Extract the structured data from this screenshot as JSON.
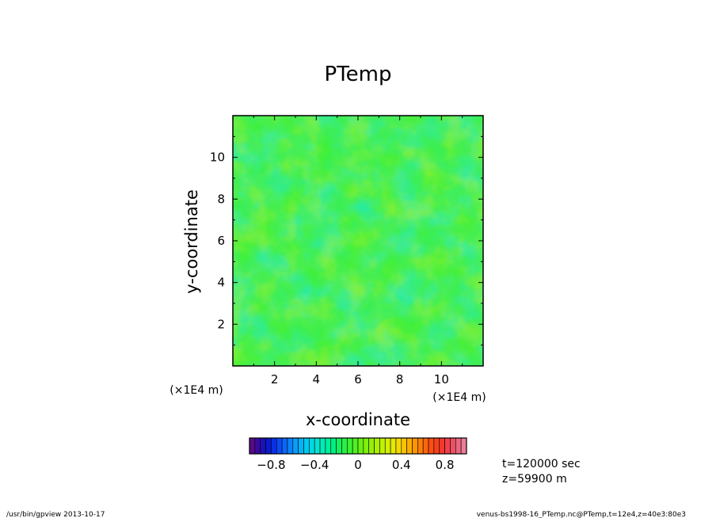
{
  "chart_data": {
    "type": "heatmap",
    "title": "PTemp",
    "xlabel": "x-coordinate",
    "ylabel": "y-coordinate",
    "x_unit": "(×1E4 m)",
    "y_unit": "(×1E4 m)",
    "xlim": [
      0,
      12
    ],
    "ylim": [
      0,
      12
    ],
    "x_ticks": [
      2,
      4,
      6,
      8,
      10
    ],
    "y_ticks": [
      2,
      4,
      6,
      8,
      10
    ],
    "x_tick_labels": [
      "2",
      "4",
      "6",
      "8",
      "10"
    ],
    "y_tick_labels": [
      "2",
      "4",
      "6",
      "8",
      "10"
    ],
    "field_description": "noisy field with values mostly between -0.3 and 0.4",
    "colorbar": {
      "range": [
        -1.0,
        1.0
      ],
      "steps": 40,
      "tick_values": [
        -0.8,
        -0.4,
        0,
        0.4,
        0.8
      ],
      "tick_labels": [
        "−0.8",
        "−0.4",
        "0",
        "0.4",
        "0.8"
      ],
      "colors": [
        "#5a0a8a",
        "#3a0aa0",
        "#1c10b8",
        "#0a1ad0",
        "#0a30e6",
        "#0a4cf4",
        "#0a66fa",
        "#0a82fa",
        "#0a9cfa",
        "#00b4f8",
        "#00c8f0",
        "#00d8e4",
        "#00e4d0",
        "#00ecb8",
        "#00f09c",
        "#00f07e",
        "#10f060",
        "#28f046",
        "#3cf032",
        "#50f020",
        "#68f012",
        "#7ef00a",
        "#94f006",
        "#aaf004",
        "#c0f004",
        "#d4f004",
        "#e6e804",
        "#f4d804",
        "#fac404",
        "#fcae04",
        "#fc9604",
        "#fc7e08",
        "#fc660c",
        "#fc4e14",
        "#f8401e",
        "#f4382c",
        "#f0404c",
        "#ec5066",
        "#ec6680",
        "#ec7e9a"
      ]
    }
  },
  "annotations": {
    "time": "t=120000 sec",
    "height": "z=59900 m"
  },
  "footer": {
    "program": "/usr/bin/gpview   2013-10-17",
    "source": "venus-bs1998-16_PTemp.nc@PTemp,t=12e4,z=40e3:80e3"
  }
}
